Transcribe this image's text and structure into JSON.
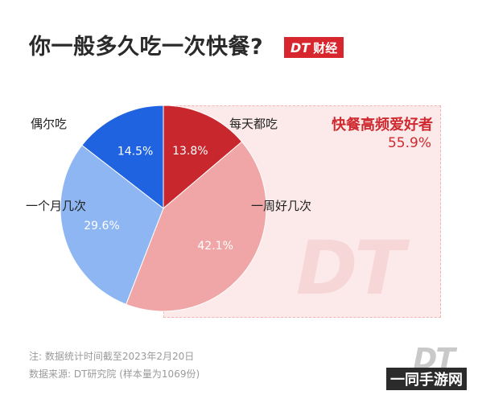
{
  "header": {
    "title": "你一般多久吃一次快餐?",
    "brand_logo": "DT",
    "brand_text": "财经",
    "brand_color": "#d8262e"
  },
  "highlight": {
    "label": "快餐高频爱好者",
    "value": "55.9%",
    "color": "#cf2a2f"
  },
  "chart_data": {
    "type": "pie",
    "slices": [
      {
        "label": "每天都吃",
        "value": 13.8,
        "value_label": "13.8%",
        "color": "#c8282d"
      },
      {
        "label": "一周好几次",
        "value": 42.1,
        "value_label": "42.1%",
        "color": "#f0a6a6"
      },
      {
        "label": "一个月几次",
        "value": 29.6,
        "value_label": "29.6%",
        "color": "#8db6f2"
      },
      {
        "label": "偶尔吃",
        "value": 14.5,
        "value_label": "14.5%",
        "color": "#1f63e0"
      }
    ],
    "start": "12 o'clock",
    "direction": "clockwise"
  },
  "notes": {
    "line1": "注: 数据统计时间截至2023年2月20日",
    "line2": "数据来源: DT研究院 (样本量为1069份)"
  },
  "watermark": {
    "panel_logo": "DT",
    "corner_logo": "DT",
    "corner_site": "一同手游网"
  }
}
